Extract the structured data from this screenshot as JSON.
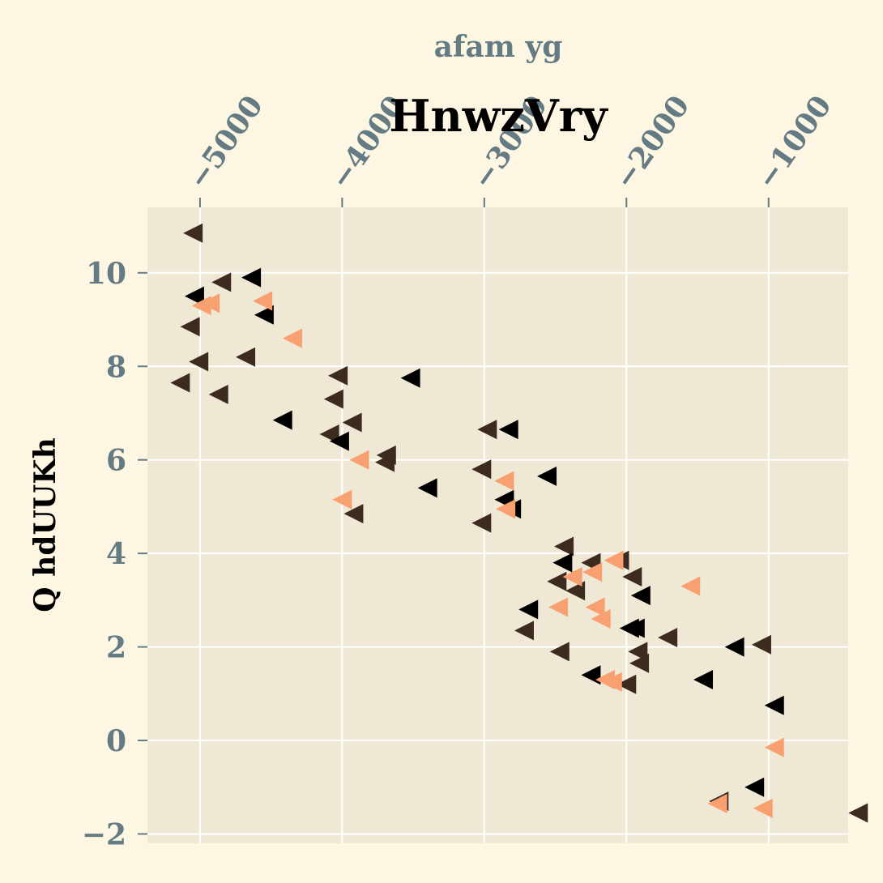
{
  "chart_data": {
    "type": "scatter",
    "title": "HnwzVry",
    "xlabel": "afam yg",
    "ylabel": "Q hdUUKh",
    "xlim": [
      -5370,
      -440
    ],
    "ylim": [
      -2.2,
      11.4
    ],
    "x_ticks": [
      -5000,
      -4000,
      -3000,
      -2000,
      -1000
    ],
    "x_tick_labels": [
      "−5000",
      "−4000",
      "−3000",
      "−2000",
      "−1000"
    ],
    "y_ticks": [
      -2,
      0,
      2,
      4,
      6,
      8,
      10
    ],
    "y_tick_labels": [
      "−2",
      "0",
      "2",
      "4",
      "6",
      "8",
      "10"
    ],
    "x_axis_position": "top",
    "grid": true,
    "legend": "none",
    "marker": "triangle-left",
    "colors": {
      "background": "#fdf6e3",
      "axes_background": "#eee8d5",
      "grid": "#ffffff",
      "tick_text": "#657b83"
    },
    "series": [
      {
        "color": "#3d2b1f",
        "points": [
          [
            -5050,
            10.85
          ],
          [
            -4850,
            9.8
          ],
          [
            -5070,
            8.85
          ],
          [
            -5010,
            8.1
          ],
          [
            -4680,
            8.2
          ],
          [
            -5140,
            7.65
          ],
          [
            -4870,
            7.4
          ],
          [
            -4030,
            7.8
          ],
          [
            -4060,
            7.3
          ],
          [
            -4090,
            6.55
          ],
          [
            -3930,
            6.8
          ],
          [
            -3690,
            6.1
          ],
          [
            -3700,
            5.95
          ],
          [
            -3920,
            4.85
          ],
          [
            -2980,
            6.65
          ],
          [
            -3020,
            5.8
          ],
          [
            -3020,
            4.65
          ],
          [
            -2440,
            4.15
          ],
          [
            -2490,
            3.4
          ],
          [
            -2360,
            3.2
          ],
          [
            -2250,
            3.8
          ],
          [
            -1960,
            3.5
          ],
          [
            -2050,
            3.85
          ],
          [
            -2720,
            2.35
          ],
          [
            -2470,
            1.9
          ],
          [
            -1920,
            1.9
          ],
          [
            -1910,
            1.65
          ],
          [
            -2000,
            1.2
          ],
          [
            -1710,
            2.2
          ],
          [
            -1050,
            2.05
          ],
          [
            -1350,
            -1.3
          ],
          [
            -370,
            -1.55
          ]
        ]
      },
      {
        "color": "#000000",
        "points": [
          [
            -5040,
            9.5
          ],
          [
            -4640,
            9.9
          ],
          [
            -4550,
            9.1
          ],
          [
            -4420,
            6.85
          ],
          [
            -3520,
            7.75
          ],
          [
            -4020,
            6.4
          ],
          [
            -3400,
            5.4
          ],
          [
            -2830,
            6.65
          ],
          [
            -2860,
            5.15
          ],
          [
            -2810,
            4.95
          ],
          [
            -2560,
            5.65
          ],
          [
            -2690,
            2.8
          ],
          [
            -2450,
            3.8
          ],
          [
            -1900,
            3.1
          ],
          [
            -1940,
            2.4
          ],
          [
            -1980,
            2.4
          ],
          [
            -1460,
            1.3
          ],
          [
            -1240,
            2.0
          ],
          [
            -1100,
            -1.0
          ],
          [
            -960,
            0.75
          ],
          [
            -2250,
            1.4
          ]
        ]
      },
      {
        "color": "#f9a070",
        "points": [
          [
            -4990,
            9.3
          ],
          [
            -4930,
            9.35
          ],
          [
            -4560,
            9.4
          ],
          [
            -4350,
            8.6
          ],
          [
            -4000,
            5.15
          ],
          [
            -3880,
            6.0
          ],
          [
            -2860,
            5.55
          ],
          [
            -2850,
            4.95
          ],
          [
            -2380,
            3.5
          ],
          [
            -2240,
            3.6
          ],
          [
            -2090,
            3.85
          ],
          [
            -2480,
            2.85
          ],
          [
            -2220,
            2.85
          ],
          [
            -2180,
            2.6
          ],
          [
            -2150,
            1.3
          ],
          [
            -2100,
            1.25
          ],
          [
            -1550,
            3.3
          ],
          [
            -960,
            -0.15
          ],
          [
            -1360,
            -1.35
          ],
          [
            -1040,
            -1.45
          ]
        ]
      }
    ]
  }
}
